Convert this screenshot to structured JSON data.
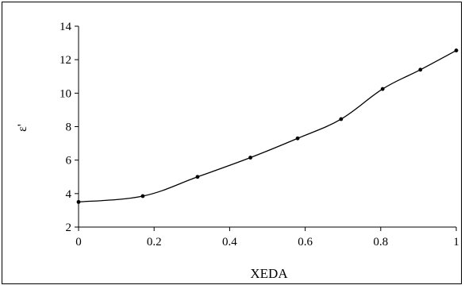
{
  "chart_data": {
    "type": "line",
    "xlabel": "XEDA",
    "ylabel": "ε'",
    "xlim": [
      0,
      1
    ],
    "ylim": [
      2,
      14
    ],
    "xticks": [
      0,
      0.2,
      0.4,
      0.6,
      0.8,
      1
    ],
    "xtick_labels": [
      "0",
      "0.2",
      "0.4",
      "0.6",
      "0.8",
      "1"
    ],
    "yticks": [
      2,
      4,
      6,
      8,
      10,
      12,
      14
    ],
    "ytick_labels": [
      "2",
      "4",
      "6",
      "8",
      "10",
      "12",
      "14"
    ],
    "grid": false,
    "legend": "none",
    "line_color": "#000000",
    "series": [
      {
        "x": [
          0,
          0.17,
          0.315,
          0.455,
          0.58,
          0.695,
          0.805,
          0.905,
          1.0
        ],
        "y": [
          3.5,
          3.85,
          5.0,
          6.15,
          7.3,
          8.45,
          10.25,
          11.4,
          12.55
        ]
      }
    ]
  }
}
